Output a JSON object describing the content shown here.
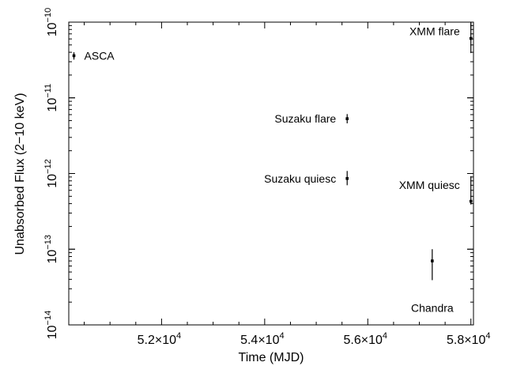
{
  "chart_data": {
    "type": "scatter",
    "title": "",
    "xlabel": "Time (MJD)",
    "ylabel": "Unabsorbed Flux (2−10 keV)",
    "xlim": [
      50200,
      58050
    ],
    "ylim": [
      1e-14,
      1e-10
    ],
    "y_scale": "log",
    "grid": false,
    "x_ticks": [
      {
        "value": 52000,
        "mantissa": "5.2×10",
        "exp": "4"
      },
      {
        "value": 54000,
        "mantissa": "5.4×10",
        "exp": "4"
      },
      {
        "value": 56000,
        "mantissa": "5.6×10",
        "exp": "4"
      },
      {
        "value": 58000,
        "mantissa": "5.8×10",
        "exp": "4"
      }
    ],
    "y_ticks": [
      {
        "value": 1e-14,
        "base": "10",
        "exp": "−14"
      },
      {
        "value": 1e-13,
        "base": "10",
        "exp": "−13"
      },
      {
        "value": 1e-12,
        "base": "10",
        "exp": "−12"
      },
      {
        "value": 1e-11,
        "base": "10",
        "exp": "−11"
      },
      {
        "value": 1e-10,
        "base": "10",
        "exp": "−10"
      }
    ],
    "points": [
      {
        "label": "ASCA",
        "x": 50300,
        "y": 3.6e-11,
        "y_low": 3.2e-11,
        "y_high": 4e-11,
        "label_side": "right"
      },
      {
        "label": "Suzaku flare",
        "x": 55600,
        "y": 5.3e-12,
        "y_low": 4.6e-12,
        "y_high": 6.1e-12,
        "label_side": "left"
      },
      {
        "label": "Suzaku quiesc",
        "x": 55600,
        "y": 8.6e-13,
        "y_low": 7e-13,
        "y_high": 1.08e-12,
        "label_side": "left"
      },
      {
        "label": "XMM flare",
        "x": 58000,
        "y": 6.1e-11,
        "y_low": 3.9e-11,
        "y_high": 1e-10,
        "label_side": "left"
      },
      {
        "label": "XMM quiesc",
        "x": 58000,
        "y": 4.3e-13,
        "y_low": 3.9e-13,
        "y_high": 9.2e-13,
        "label_side": "left"
      },
      {
        "label": "Chandra",
        "x": 57250,
        "y": 7e-14,
        "y_low": 3.9e-14,
        "y_high": 1e-13,
        "label_side": "below"
      }
    ]
  }
}
